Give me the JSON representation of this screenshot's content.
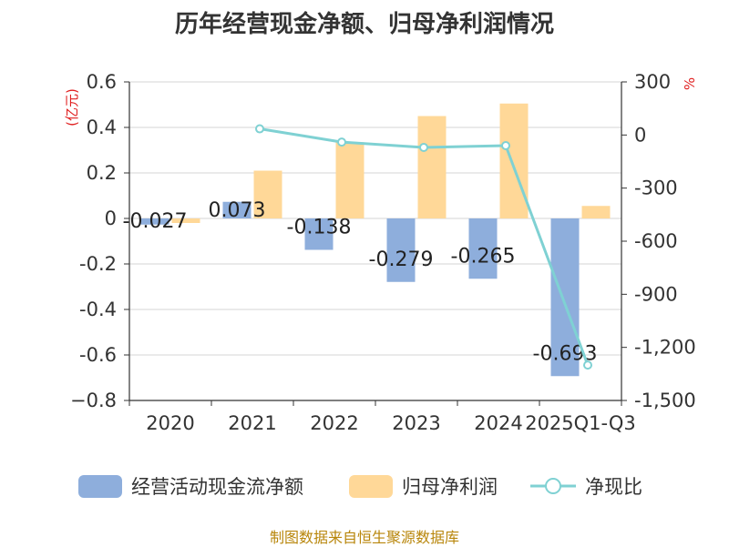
{
  "title": "历年经营现金净额、归母净利润情况",
  "source": "制图数据来自恒生聚源数据库",
  "colors": {
    "cash": "#8eaedc",
    "profit": "#ffd898",
    "ratio": "#7fd1d3",
    "unit": "#e02020",
    "source": "#b8860b"
  },
  "chart_data": {
    "type": "bar",
    "categories": [
      "2020",
      "2021",
      "2022",
      "2023",
      "2024",
      "2025Q1-Q3"
    ],
    "left_axis": {
      "unit_label": "(亿元)",
      "ylim": [
        -0.8,
        0.6
      ],
      "ticks": [
        0.6,
        0.4,
        0.2,
        0,
        -0.2,
        -0.4,
        -0.6,
        -0.8
      ],
      "tick_labels": [
        "0.6",
        "0.4",
        "0.2",
        "0",
        "-0.2",
        "-0.4",
        "-0.6",
        "−0.8"
      ]
    },
    "right_axis": {
      "unit_label": "%",
      "ylim": [
        -1500,
        300
      ],
      "ticks": [
        300,
        0,
        -300,
        -600,
        -900,
        -1200,
        -1500
      ],
      "tick_labels": [
        "300",
        "0",
        "-300",
        "-600",
        "-900",
        "-1,200",
        "-1,500"
      ]
    },
    "series": [
      {
        "name": "经营活动现金流净额",
        "type": "bar",
        "axis": "left",
        "values": [
          -0.027,
          0.073,
          -0.138,
          -0.279,
          -0.265,
          -0.693
        ],
        "labels": [
          "-0.027",
          "0.073",
          "-0.138",
          "-0.279",
          "-0.265",
          "-0.693"
        ]
      },
      {
        "name": "归母净利润",
        "type": "bar",
        "axis": "left",
        "values": [
          -0.02,
          0.21,
          0.335,
          0.45,
          0.505,
          0.055
        ]
      },
      {
        "name": "净现比",
        "type": "line",
        "axis": "right",
        "values": [
          null,
          35,
          -40,
          -70,
          -60,
          -1300
        ]
      }
    ]
  }
}
